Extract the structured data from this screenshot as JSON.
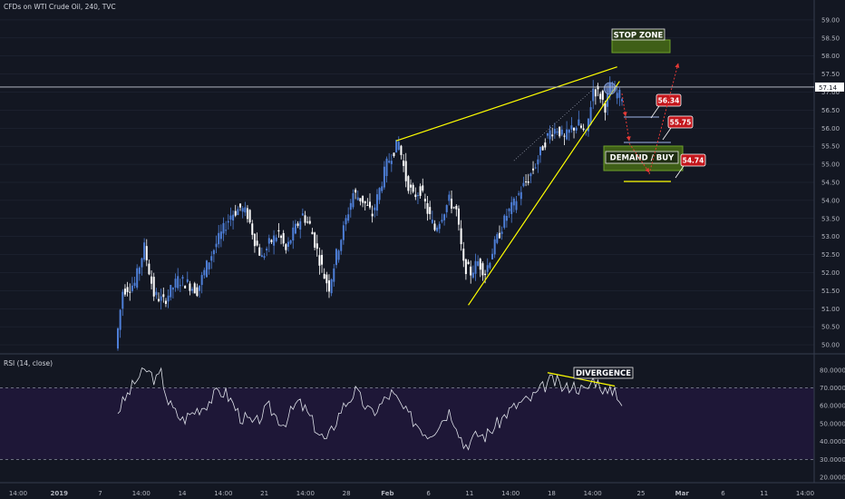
{
  "chart_data": {
    "type": "candlestick",
    "title": "CFDs on WTI Crude Oil, 240, TVC",
    "price_axis": {
      "ticks": [
        "59.00",
        "58.50",
        "58.00",
        "57.50",
        "57.00",
        "56.50",
        "56.00",
        "55.50",
        "55.00",
        "54.50",
        "54.00",
        "53.50",
        "53.00",
        "52.50",
        "52.00",
        "51.50",
        "51.00",
        "50.50",
        "50.00"
      ],
      "range": [
        49.8,
        59.3
      ],
      "last_price": "57.14"
    },
    "time_axis": {
      "labels": [
        "14:00",
        "2019",
        "7",
        "14:00",
        "14",
        "14:00",
        "21",
        "14:00",
        "28",
        "Feb",
        "6",
        "11",
        "14:00",
        "18",
        "14:00",
        "25",
        "Mar",
        "6",
        "11",
        "14:00"
      ]
    },
    "price_path": [
      [
        0,
        49.9
      ],
      [
        3,
        51.5
      ],
      [
        8,
        51.7
      ],
      [
        12,
        52.7
      ],
      [
        16,
        51.4
      ],
      [
        20,
        51.2
      ],
      [
        26,
        51.8
      ],
      [
        30,
        51.7
      ],
      [
        34,
        51.5
      ],
      [
        38,
        52.2
      ],
      [
        42,
        52.8
      ],
      [
        45,
        53.2
      ],
      [
        48,
        53.6
      ],
      [
        52,
        53.8
      ],
      [
        55,
        53.6
      ],
      [
        58,
        52.9
      ],
      [
        61,
        52.4
      ],
      [
        64,
        52.8
      ],
      [
        68,
        53.1
      ],
      [
        71,
        52.6
      ],
      [
        74,
        53.1
      ],
      [
        78,
        53.6
      ],
      [
        81,
        53.3
      ],
      [
        84,
        52.6
      ],
      [
        87,
        51.9
      ],
      [
        89,
        51.6
      ],
      [
        92,
        52.5
      ],
      [
        95,
        53.2
      ],
      [
        99,
        54.2
      ],
      [
        103,
        54.0
      ],
      [
        107,
        53.6
      ],
      [
        110,
        54.3
      ],
      [
        113,
        55.0
      ],
      [
        116,
        55.4
      ],
      [
        118,
        55.6
      ],
      [
        121,
        54.6
      ],
      [
        124,
        54.1
      ],
      [
        127,
        54.3
      ],
      [
        130,
        53.7
      ],
      [
        133,
        53.2
      ],
      [
        136,
        53.6
      ],
      [
        139,
        54.0
      ],
      [
        142,
        53.7
      ],
      [
        145,
        52.2
      ],
      [
        148,
        52.0
      ],
      [
        151,
        52.3
      ],
      [
        154,
        52.0
      ],
      [
        157,
        52.6
      ],
      [
        160,
        53.1
      ],
      [
        163,
        53.6
      ],
      [
        166,
        53.9
      ],
      [
        169,
        54.3
      ],
      [
        172,
        54.6
      ],
      [
        175,
        55.0
      ],
      [
        178,
        55.5
      ],
      [
        181,
        55.9
      ],
      [
        184,
        56.0
      ],
      [
        187,
        55.7
      ],
      [
        190,
        56.0
      ],
      [
        193,
        56.1
      ],
      [
        196,
        55.8
      ],
      [
        199,
        57.1
      ],
      [
        202,
        56.9
      ],
      [
        204,
        56.6
      ],
      [
        206,
        57.1
      ],
      [
        208,
        57.0
      ],
      [
        210,
        56.9
      ]
    ],
    "rsi": {
      "label": "RSI (14, close)",
      "ticks": [
        "80.0000",
        "70.0000",
        "60.0000",
        "50.0000",
        "40.0000",
        "30.0000",
        "20.0000"
      ],
      "range": [
        18,
        88
      ],
      "upper_band": 70,
      "lower_band": 30,
      "values": [
        [
          0,
          57
        ],
        [
          4,
          66
        ],
        [
          8,
          75
        ],
        [
          12,
          80
        ],
        [
          16,
          74
        ],
        [
          18,
          78
        ],
        [
          21,
          62
        ],
        [
          24,
          56
        ],
        [
          27,
          52
        ],
        [
          30,
          55
        ],
        [
          33,
          58
        ],
        [
          36,
          60
        ],
        [
          39,
          64
        ],
        [
          42,
          68
        ],
        [
          45,
          67
        ],
        [
          48,
          61
        ],
        [
          51,
          54
        ],
        [
          54,
          52
        ],
        [
          57,
          49
        ],
        [
          60,
          55
        ],
        [
          63,
          59
        ],
        [
          66,
          54
        ],
        [
          69,
          50
        ],
        [
          72,
          56
        ],
        [
          75,
          62
        ],
        [
          78,
          58
        ],
        [
          81,
          51
        ],
        [
          84,
          44
        ],
        [
          87,
          40
        ],
        [
          90,
          49
        ],
        [
          93,
          58
        ],
        [
          96,
          63
        ],
        [
          99,
          68
        ],
        [
          102,
          62
        ],
        [
          105,
          56
        ],
        [
          108,
          58
        ],
        [
          111,
          63
        ],
        [
          114,
          67
        ],
        [
          117,
          62
        ],
        [
          120,
          56
        ],
        [
          123,
          52
        ],
        [
          126,
          48
        ],
        [
          129,
          44
        ],
        [
          132,
          47
        ],
        [
          135,
          52
        ],
        [
          138,
          57
        ],
        [
          141,
          50
        ],
        [
          144,
          38
        ],
        [
          147,
          40
        ],
        [
          150,
          44
        ],
        [
          153,
          43
        ],
        [
          156,
          47
        ],
        [
          159,
          51
        ],
        [
          162,
          56
        ],
        [
          165,
          59
        ],
        [
          168,
          62
        ],
        [
          171,
          63
        ],
        [
          174,
          66
        ],
        [
          177,
          70
        ],
        [
          180,
          74
        ],
        [
          183,
          73
        ],
        [
          186,
          69
        ],
        [
          189,
          72
        ],
        [
          192,
          70
        ],
        [
          195,
          68
        ],
        [
          198,
          75
        ],
        [
          201,
          72
        ],
        [
          204,
          66
        ],
        [
          207,
          70
        ],
        [
          210,
          61
        ]
      ]
    },
    "annotations": {
      "stop_zone": "STOP ZONE",
      "demand_buy": "DEMAND / BUY",
      "divergence": "DIVERGENCE",
      "targets": [
        "56.34",
        "55.75",
        "54.74"
      ]
    }
  },
  "colors": {
    "background": "#131722",
    "candle_up": "#4e7fd8",
    "candle_down": "#ffffff",
    "trendline": "#ffff00",
    "arrow": "#e53935",
    "flag": "#c4161c",
    "zone": "#3f5f17",
    "zone_border": "#6ea02a",
    "rsi_fill": "#1e1737",
    "rsi_line": "#dde0e8",
    "grid": "#252b3a"
  }
}
